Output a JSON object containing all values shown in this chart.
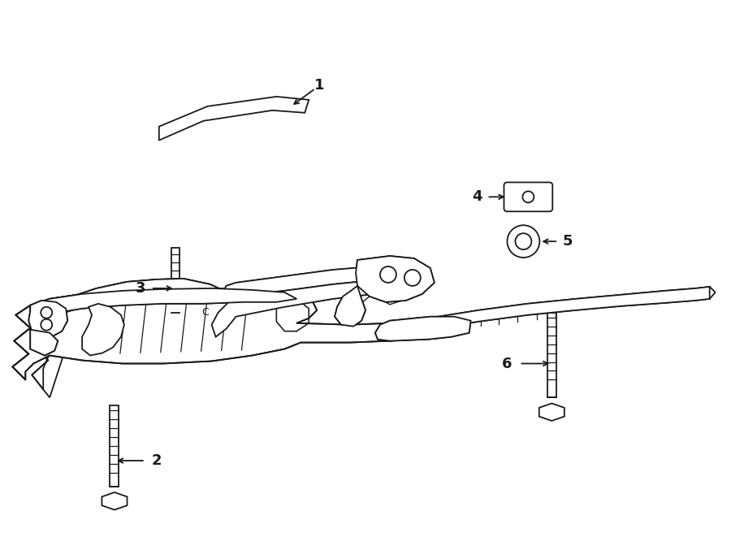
{
  "bg_color": "#ffffff",
  "line_color": "#1a1a1a",
  "fig_width": 9.0,
  "fig_height": 6.61,
  "dpi": 100,
  "label_fs": 13,
  "lw": 1.3
}
